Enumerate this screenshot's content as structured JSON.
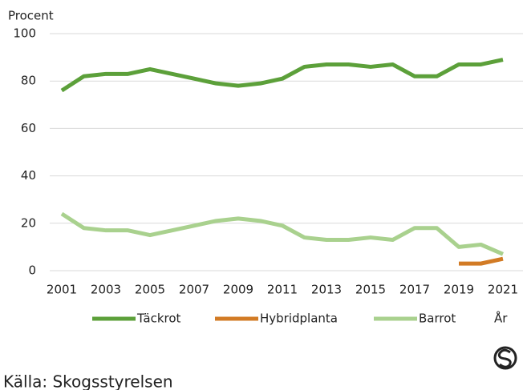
{
  "chart_data": {
    "type": "line",
    "y_label": "Procent",
    "x_label": "År",
    "source": "Källa: Skogsstyrelsen",
    "categories": [
      "2001",
      null,
      "2003",
      null,
      "2005",
      null,
      "2007",
      null,
      "2009",
      null,
      "2011",
      null,
      "2013",
      null,
      "2015",
      null,
      "2017",
      null,
      "2019",
      null,
      "2021"
    ],
    "series": [
      {
        "name": "Täckrot",
        "color": "#5ca03a",
        "values": [
          76,
          82,
          83,
          83,
          85,
          83,
          81,
          79,
          78,
          79,
          81,
          86,
          87,
          87,
          86,
          87,
          82,
          82,
          87,
          87,
          89
        ]
      },
      {
        "name": "Hybridplanta",
        "color": "#d27b25",
        "values": [
          null,
          null,
          null,
          null,
          null,
          null,
          null,
          null,
          null,
          null,
          null,
          null,
          null,
          null,
          null,
          null,
          null,
          null,
          3,
          3,
          5
        ]
      },
      {
        "name": "Barrot",
        "color": "#a9d18e",
        "values": [
          24,
          18,
          17,
          17,
          15,
          17,
          19,
          21,
          22,
          21,
          19,
          14,
          13,
          13,
          14,
          13,
          18,
          18,
          10,
          11,
          7
        ]
      }
    ],
    "ylim": [
      0,
      100
    ],
    "yticks": [
      0,
      20,
      40,
      60,
      80,
      100
    ],
    "grid": true
  }
}
